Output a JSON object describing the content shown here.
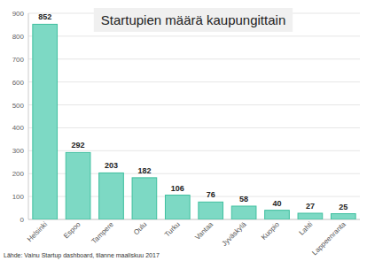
{
  "chart_data": {
    "type": "bar",
    "title": "Startupien määrä kaupungittain",
    "categories": [
      "Helsinki",
      "Espoo",
      "Tampere",
      "Oulu",
      "Turku",
      "Vantaa",
      "Jyväskylä",
      "Kuopio",
      "Lahti",
      "Lappeenranta"
    ],
    "values": [
      852,
      292,
      203,
      182,
      106,
      76,
      58,
      40,
      27,
      25
    ],
    "color": "#7dd9c4",
    "ylim": [
      0,
      900
    ],
    "yticks": [
      0,
      100,
      200,
      300,
      400,
      500,
      600,
      700,
      800,
      900
    ],
    "grid": true,
    "data_labels": true,
    "source": "Lähde: Vainu Startup dashboard, tilanne maaliskuu 2017"
  }
}
